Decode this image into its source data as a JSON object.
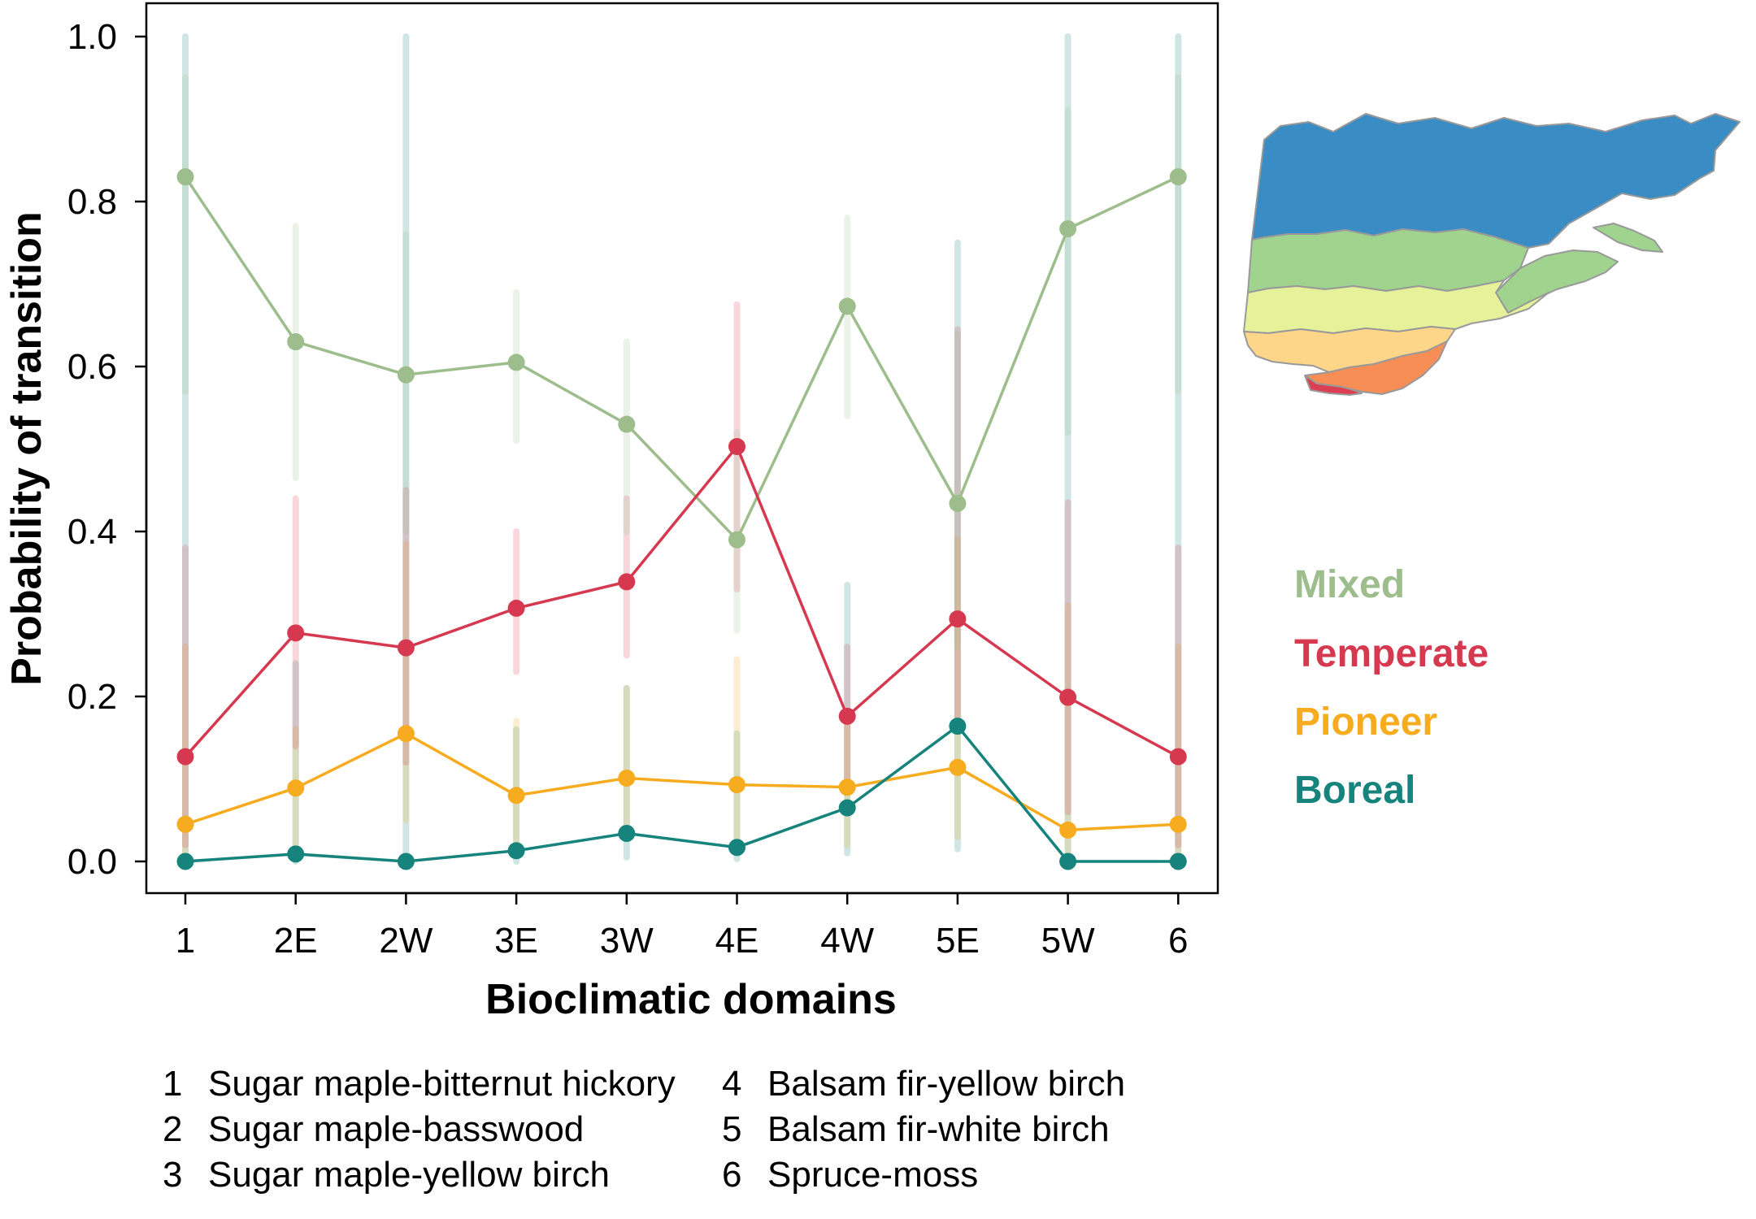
{
  "chart_data": {
    "type": "line",
    "xlabel": "Bioclimatic domains",
    "ylabel": "Probability of transition",
    "categories": [
      "1",
      "2E",
      "2W",
      "3E",
      "3W",
      "4E",
      "4W",
      "5E",
      "5W",
      "6"
    ],
    "ylim": [
      0,
      1
    ],
    "yticks": [
      "0.0",
      "0.2",
      "0.4",
      "0.6",
      "0.8",
      "1.0"
    ],
    "grid": false,
    "error_bars": true,
    "legend_placement": "right",
    "series": [
      {
        "name": "Mixed",
        "color": "#9dbd8c",
        "values": [
          0.83,
          0.63,
          0.59,
          0.605,
          0.53,
          0.39,
          0.673,
          0.434,
          0.767,
          0.83
        ],
        "lower": [
          0.57,
          0.465,
          0.4,
          0.51,
          0.4,
          0.28,
          0.54,
          0.26,
          0.52,
          0.57
        ],
        "upper": [
          0.95,
          0.77,
          0.76,
          0.69,
          0.63,
          0.52,
          0.78,
          0.64,
          0.91,
          0.95
        ]
      },
      {
        "name": "Temperate",
        "color": "#d6394f",
        "values": [
          0.127,
          0.277,
          0.259,
          0.307,
          0.339,
          0.503,
          0.176,
          0.294,
          0.199,
          0.127
        ],
        "lower": [
          0.02,
          0.14,
          0.12,
          0.23,
          0.25,
          0.33,
          0.09,
          0.16,
          0.06,
          0.02
        ],
        "upper": [
          0.38,
          0.44,
          0.45,
          0.4,
          0.44,
          0.675,
          0.26,
          0.645,
          0.435,
          0.38
        ]
      },
      {
        "name": "Pioneer",
        "color": "#f7ab1f",
        "values": [
          0.045,
          0.089,
          0.155,
          0.08,
          0.101,
          0.093,
          0.09,
          0.114,
          0.038,
          0.045
        ],
        "lower": [
          0.0,
          0.02,
          0.05,
          0.02,
          0.03,
          0.02,
          0.02,
          0.03,
          0.0,
          0.0
        ],
        "upper": [
          0.26,
          0.16,
          0.385,
          0.17,
          0.21,
          0.245,
          0.18,
          0.39,
          0.31,
          0.26
        ]
      },
      {
        "name": "Boreal",
        "color": "#16837c",
        "values": [
          0.0,
          0.009,
          0.0,
          0.013,
          0.034,
          0.017,
          0.065,
          0.164,
          0.0,
          0.0
        ],
        "lower": [
          0.0,
          0.0,
          0.0,
          0.0,
          0.005,
          0.003,
          0.01,
          0.015,
          0.0,
          0.0
        ],
        "upper": [
          1.0,
          0.24,
          1.0,
          0.16,
          0.21,
          0.155,
          0.335,
          0.75,
          1.0,
          1.0
        ]
      }
    ]
  },
  "map": {
    "colors": {
      "spruce_moss": "#3a8cc4",
      "balsam_fir_white_birch": "#9fd38e",
      "balsam_fir_yellow_birch": "#e6f29a",
      "sugar_maple_yellow_birch": "#fdd68a",
      "sugar_maple_basswood": "#f68e55",
      "sugar_maple_bitternut_hickory": "#dc3e53",
      "border": "#999999"
    }
  },
  "domain_key": [
    {
      "num": "1",
      "label": "Sugar maple-bitternut hickory"
    },
    {
      "num": "2",
      "label": "Sugar maple-basswood"
    },
    {
      "num": "3",
      "label": "Sugar maple-yellow birch"
    },
    {
      "num": "4",
      "label": "Balsam fir-yellow birch"
    },
    {
      "num": "5",
      "label": "Balsam fir-white birch"
    },
    {
      "num": "6",
      "label": "Spruce-moss"
    }
  ]
}
